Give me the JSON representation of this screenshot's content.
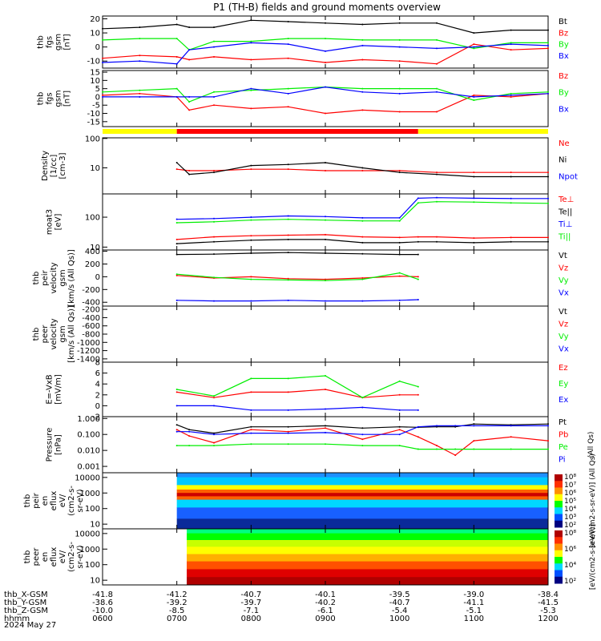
{
  "title": "P1 (TH-B) fields and ground moments overview",
  "date_label": "2024 May 27",
  "colors": {
    "black": "#000000",
    "red": "#ff0000",
    "green": "#00ee00",
    "blue": "#0000ff",
    "yellow": "#ffff00",
    "white": "#ffffff"
  },
  "chart_data": [
    {
      "type": "line",
      "ylabel": [
        "thb",
        "fgs",
        "gsm",
        "[nT]"
      ],
      "ylim": [
        -15,
        22
      ],
      "yticks": [
        "20",
        "10",
        "0",
        "-10"
      ],
      "ytick_values": [
        20,
        10,
        0,
        -10
      ],
      "legend": [
        {
          "label": "Bt",
          "color": "#000000"
        },
        {
          "label": "Bz",
          "color": "#ff0000"
        },
        {
          "label": "By",
          "color": "#00ee00"
        },
        {
          "label": "Bx",
          "color": "#0000ff"
        }
      ],
      "x": [
        "0600",
        "0630",
        "0700",
        "0710",
        "0730",
        "0800",
        "0830",
        "0900",
        "0930",
        "1000",
        "1030",
        "1100",
        "1130",
        "1200"
      ],
      "series": [
        {
          "name": "Bt",
          "color": "#000000",
          "values": [
            13,
            14,
            16,
            14,
            14,
            19,
            18,
            17,
            16,
            17,
            17,
            10,
            12,
            12
          ]
        },
        {
          "name": "Bz",
          "color": "#ff0000",
          "values": [
            -8,
            -6,
            -7,
            -9,
            -7,
            -9,
            -8,
            -11,
            -9,
            -10,
            -12,
            2,
            -2,
            -1
          ]
        },
        {
          "name": "By",
          "color": "#00ee00",
          "values": [
            5,
            6,
            6,
            -2,
            4,
            4,
            6,
            6,
            5,
            5,
            5,
            -1,
            3,
            3
          ]
        },
        {
          "name": "Bx",
          "color": "#0000ff",
          "values": [
            -11,
            -10,
            -12,
            -2,
            0,
            3,
            2,
            -3,
            1,
            0,
            -1,
            0,
            2,
            1
          ]
        }
      ]
    },
    {
      "type": "line",
      "ylabel": [
        "thb",
        "fgs",
        "gsm",
        "[nT]"
      ],
      "ylim": [
        -18,
        16
      ],
      "yticks": [
        "15",
        "10",
        "5",
        "0",
        "-5",
        "-10",
        "-15"
      ],
      "ytick_values": [
        15,
        10,
        5,
        0,
        -5,
        -10,
        -15
      ],
      "legend": [
        {
          "label": "Bz",
          "color": "#ff0000"
        },
        {
          "label": "By",
          "color": "#00ee00"
        },
        {
          "label": "Bx",
          "color": "#0000ff"
        }
      ],
      "x": [
        "0600",
        "0630",
        "0700",
        "0710",
        "0730",
        "0800",
        "0830",
        "0900",
        "0930",
        "1000",
        "1030",
        "1100",
        "1130",
        "1200"
      ],
      "series": [
        {
          "name": "Bz",
          "color": "#ff0000",
          "values": [
            1,
            2,
            0,
            -8,
            -5,
            -7,
            -6,
            -10,
            -8,
            -9,
            -9,
            1,
            0,
            2
          ]
        },
        {
          "name": "By",
          "color": "#00ee00",
          "values": [
            3,
            4,
            5,
            -3,
            3,
            4,
            5,
            6,
            5,
            5,
            5,
            -2,
            2,
            3
          ]
        },
        {
          "name": "Bx",
          "color": "#0000ff",
          "values": [
            0,
            0,
            0,
            0,
            0,
            5,
            2,
            6,
            3,
            2,
            3,
            0,
            1,
            2
          ]
        }
      ]
    },
    {
      "type": "line",
      "ylabel": [
        "Density",
        "[1/cc]",
        "[cm-3]"
      ],
      "ylim": [
        1.3,
        105
      ],
      "log": true,
      "yticks": [
        "100",
        "10"
      ],
      "ytick_values": [
        100,
        10
      ],
      "legend": [
        {
          "label": "Ne",
          "color": "#ff0000"
        },
        {
          "label": "Ni",
          "color": "#000000"
        },
        {
          "label": "Npot",
          "color": "#0000ff"
        }
      ],
      "x": [
        "0700",
        "0710",
        "0730",
        "0800",
        "0830",
        "0900",
        "0930",
        "1000",
        "1030",
        "1100",
        "1130",
        "1200"
      ],
      "series": [
        {
          "name": "Ne",
          "color": "#ff0000",
          "values": [
            9,
            8,
            8,
            9,
            9,
            8,
            8,
            8,
            7,
            7,
            7,
            7
          ]
        },
        {
          "name": "Ni",
          "color": "#000000",
          "values": [
            15,
            6,
            7,
            12,
            13,
            15,
            10,
            7,
            6,
            5,
            5,
            5
          ]
        }
      ]
    },
    {
      "type": "line",
      "ylabel": [
        "moat3",
        "[eV]"
      ],
      "ylim": [
        8,
        600
      ],
      "log": true,
      "yticks": [
        "100",
        "10"
      ],
      "ytick_values": [
        100,
        10
      ],
      "legend": [
        {
          "label": "Te⊥",
          "color": "#ff0000"
        },
        {
          "label": "Te||",
          "color": "#000000"
        },
        {
          "label": "Ti⊥",
          "color": "#0000ff"
        },
        {
          "label": "Ti||",
          "color": "#00ee00"
        }
      ],
      "x": [
        "0700",
        "0730",
        "0800",
        "0830",
        "0900",
        "0930",
        "1000",
        "1015",
        "1030",
        "1100",
        "1130",
        "1200"
      ],
      "series": [
        {
          "name": "Te⊥",
          "color": "#ff0000",
          "values": [
            18,
            22,
            24,
            25,
            26,
            22,
            21,
            22,
            22,
            20,
            21,
            21
          ]
        },
        {
          "name": "Te||",
          "color": "#000000",
          "values": [
            13,
            15,
            17,
            18,
            18,
            14,
            14,
            15,
            15,
            14,
            15,
            15
          ]
        },
        {
          "name": "Ti⊥",
          "color": "#0000ff",
          "values": [
            85,
            90,
            100,
            110,
            105,
            95,
            95,
            430,
            450,
            430,
            420,
            420
          ]
        },
        {
          "name": "Ti||",
          "color": "#00ee00",
          "values": [
            65,
            70,
            80,
            85,
            80,
            75,
            75,
            300,
            330,
            320,
            300,
            290
          ]
        }
      ]
    },
    {
      "type": "line",
      "ylabel": [
        "thb",
        "peir",
        "velocity",
        "gsm",
        "[km/s (All Qs)]"
      ],
      "ylim": [
        -460,
        420
      ],
      "yticks": [
        "400",
        "200",
        "0",
        "-200",
        "-400"
      ],
      "ytick_values": [
        400,
        200,
        0,
        -200,
        -400
      ],
      "legend": [
        {
          "label": "Vt",
          "color": "#000000"
        },
        {
          "label": "Vz",
          "color": "#ff0000"
        },
        {
          "label": "Vy",
          "color": "#00ee00"
        },
        {
          "label": "Vx",
          "color": "#0000ff"
        }
      ],
      "x": [
        "0700",
        "0730",
        "0800",
        "0830",
        "0900",
        "0930",
        "1000",
        "1015"
      ],
      "series": [
        {
          "name": "Vt",
          "color": "#000000",
          "values": [
            350,
            355,
            370,
            380,
            370,
            360,
            350,
            350
          ]
        },
        {
          "name": "Vz",
          "color": "#ff0000",
          "values": [
            20,
            -20,
            0,
            -30,
            -40,
            -20,
            10,
            0
          ]
        },
        {
          "name": "Vy",
          "color": "#00ee00",
          "values": [
            40,
            -10,
            -40,
            -50,
            -60,
            -40,
            60,
            -40
          ]
        },
        {
          "name": "Vx",
          "color": "#0000ff",
          "values": [
            -370,
            -380,
            -380,
            -370,
            -380,
            -380,
            -370,
            -360
          ]
        }
      ]
    },
    {
      "type": "line",
      "ylabel": [
        "thb",
        "peer",
        "velocity",
        "gsm",
        "[km/s (All Qs)]"
      ],
      "ylim": [
        -1480,
        -120
      ],
      "yticks": [
        "-200",
        "-400",
        "-600",
        "-800",
        "-1000",
        "-1200",
        "-1400"
      ],
      "ytick_values": [
        -200,
        -400,
        -600,
        -800,
        -1000,
        -1200,
        -1400
      ],
      "legend": [
        {
          "label": "Vt",
          "color": "#000000"
        },
        {
          "label": "Vz",
          "color": "#ff0000"
        },
        {
          "label": "Vy",
          "color": "#00ee00"
        },
        {
          "label": "Vx",
          "color": "#0000ff"
        }
      ],
      "series": []
    },
    {
      "type": "line",
      "ylabel": [
        "E=-VxB",
        "[mV/m]"
      ],
      "ylim": [
        -2,
        8
      ],
      "yticks": [
        "8",
        "6",
        "4",
        "2",
        "0",
        "-2"
      ],
      "ytick_values": [
        8,
        6,
        4,
        2,
        0,
        -2
      ],
      "legend": [
        {
          "label": "Ez",
          "color": "#ff0000"
        },
        {
          "label": "Ey",
          "color": "#00ee00"
        },
        {
          "label": "Ex",
          "color": "#0000ff"
        }
      ],
      "x": [
        "0700",
        "0730",
        "0800",
        "0830",
        "0900",
        "0930",
        "1000",
        "1015"
      ],
      "series": [
        {
          "name": "Ez",
          "color": "#ff0000",
          "values": [
            2.5,
            1.5,
            2.5,
            2.5,
            3,
            1.5,
            2,
            2
          ]
        },
        {
          "name": "Ey",
          "color": "#00ee00",
          "values": [
            3,
            1.8,
            5,
            5,
            5.5,
            1.5,
            4.5,
            3.5
          ]
        },
        {
          "name": "Ex",
          "color": "#0000ff",
          "values": [
            0,
            0,
            -0.8,
            -0.8,
            -0.6,
            -0.3,
            -0.8,
            -0.8
          ]
        }
      ]
    },
    {
      "type": "line",
      "ylabel": [
        "Pressure",
        "[nPa]"
      ],
      "ylim": [
        0.0004,
        1.3
      ],
      "log": true,
      "yticks": [
        "1.000",
        "0.100",
        "0.010",
        "0.001"
      ],
      "ytick_values": [
        1,
        0.1,
        0.01,
        0.001
      ],
      "legend_side": "(All Qs)",
      "legend": [
        {
          "label": "Pt",
          "color": "#000000"
        },
        {
          "label": "Pb",
          "color": "#ff0000"
        },
        {
          "label": "Pe",
          "color": "#00ee00"
        },
        {
          "label": "Pi",
          "color": "#0000ff"
        }
      ],
      "x": [
        "0700",
        "0710",
        "0730",
        "0800",
        "0830",
        "0900",
        "0930",
        "1000",
        "1015",
        "1030",
        "1045",
        "1100",
        "1130",
        "1200"
      ],
      "series": [
        {
          "name": "Pt",
          "color": "#000000",
          "values": [
            0.4,
            0.2,
            0.12,
            0.3,
            0.3,
            0.35,
            0.25,
            0.3,
            0.28,
            0.3,
            0.3,
            0.45,
            0.4,
            0.45
          ]
        },
        {
          "name": "Pb",
          "color": "#ff0000",
          "values": [
            0.2,
            0.08,
            0.03,
            0.2,
            0.15,
            0.25,
            0.05,
            0.2,
            0.07,
            0.02,
            0.005,
            0.04,
            0.07,
            0.04
          ]
        },
        {
          "name": "Pe",
          "color": "#00ee00",
          "values": [
            0.02,
            0.02,
            0.02,
            0.025,
            0.025,
            0.025,
            0.02,
            0.02,
            0.012,
            0.012,
            0.012,
            0.012,
            0.012,
            0.012
          ]
        },
        {
          "name": "Pi",
          "color": "#0000ff",
          "values": [
            0.15,
            0.15,
            0.1,
            0.12,
            0.12,
            0.13,
            0.1,
            0.1,
            0.3,
            0.35,
            0.35,
            0.35,
            0.35,
            0.35
          ]
        }
      ]
    },
    {
      "type": "heatmap",
      "ylabel": [
        "thb",
        "peir",
        "en",
        "eflux",
        "eV/",
        "(cm2-s-",
        "sr-eV)"
      ],
      "ylim": [
        5,
        20000
      ],
      "log": true,
      "yticks": [
        "10000",
        "1000",
        "100",
        "10"
      ],
      "ytick_values": [
        10000,
        1000,
        100,
        10
      ],
      "colorbar_label": "[eV/(cm2-s-sr-eV)] (All Qs)",
      "colorbar_ticks": [
        "10⁸",
        "10⁷",
        "10⁶",
        "10⁵",
        "10⁴",
        "10³",
        "10²"
      ]
    },
    {
      "type": "heatmap",
      "ylabel": [
        "thb",
        "peer",
        "en",
        "eflux",
        "eV/",
        "(cm2-s-",
        "sr-eV)"
      ],
      "ylim": [
        5,
        20000
      ],
      "log": true,
      "yticks": [
        "10000",
        "1000",
        "100",
        "10"
      ],
      "ytick_values": [
        10000,
        1000,
        100,
        10
      ],
      "colorbar_label": "[eV/(cm2-s-sr-eV)]",
      "colorbar_ticks": [
        "10⁸",
        "10⁶",
        "10⁴",
        "10²"
      ]
    }
  ],
  "x_axis": {
    "rows": [
      {
        "label": "thb_X-GSM",
        "values": [
          "-41.8",
          "-41.2",
          "-40.7",
          "-40.1",
          "-39.5",
          "-39.0",
          "-38.4"
        ]
      },
      {
        "label": "thb_Y-GSM",
        "values": [
          "-38.6",
          "-39.2",
          "-39.7",
          "-40.2",
          "-40.7",
          "-41.1",
          "-41.5"
        ]
      },
      {
        "label": "thb_Z-GSM",
        "values": [
          "-10.0",
          "-8.5",
          "-7.1",
          "-6.1",
          "-5.4",
          "-5.1",
          "-5.3"
        ]
      },
      {
        "label": "hhmm",
        "values": [
          "0600",
          "0700",
          "0800",
          "0900",
          "1000",
          "1100",
          "1200"
        ]
      }
    ]
  },
  "mode_bar": [
    "yellow",
    "red",
    "yellow"
  ]
}
